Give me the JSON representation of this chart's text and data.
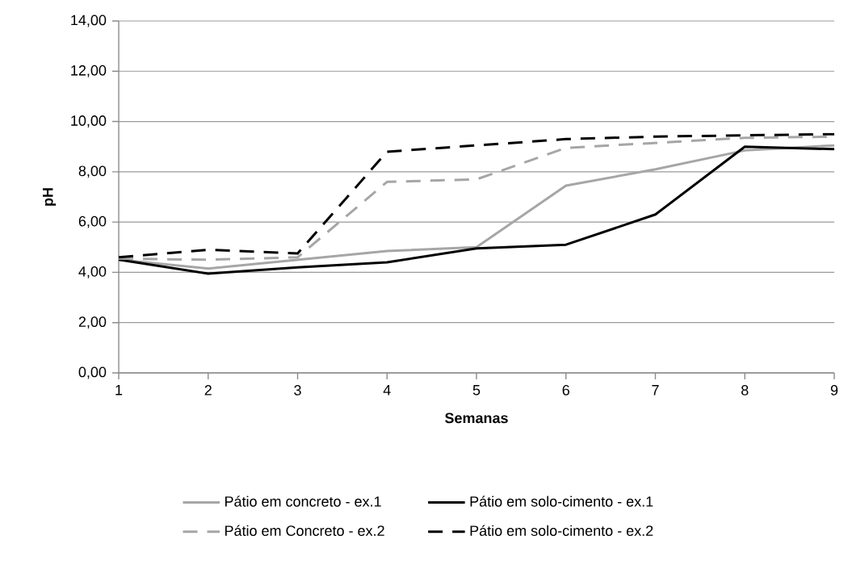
{
  "chart_data": {
    "type": "line",
    "xlabel": "Semanas",
    "ylabel": "pH",
    "x": [
      1,
      2,
      3,
      4,
      5,
      6,
      7,
      8,
      9
    ],
    "series": [
      {
        "name": "Pátio em concreto - ex.1",
        "color": "#a6a6a6",
        "line_style": "solid",
        "values": [
          4.5,
          4.15,
          4.5,
          4.85,
          5.0,
          7.45,
          8.1,
          8.85,
          9.05
        ]
      },
      {
        "name": "Pátio em solo-cimento - ex.1",
        "color": "#000000",
        "line_style": "solid",
        "values": [
          4.5,
          3.95,
          4.2,
          4.4,
          4.95,
          5.1,
          6.3,
          9.0,
          8.9
        ]
      },
      {
        "name": "Pátio em Concreto - ex.2",
        "color": "#a6a6a6",
        "line_style": "dashed",
        "values": [
          4.55,
          4.5,
          4.6,
          7.6,
          7.7,
          8.95,
          9.15,
          9.35,
          9.4
        ]
      },
      {
        "name": "Pátio em solo-cimento - ex.2",
        "color": "#000000",
        "line_style": "dashed",
        "values": [
          4.6,
          4.9,
          4.75,
          8.8,
          9.05,
          9.3,
          9.4,
          9.45,
          9.5
        ]
      }
    ],
    "xlim": [
      1,
      9
    ],
    "xticks": [
      1,
      2,
      3,
      4,
      5,
      6,
      7,
      8,
      9
    ],
    "ylim": [
      0,
      14
    ],
    "yticks": [
      {
        "value": 0,
        "label": "0,00"
      },
      {
        "value": 2,
        "label": "2,00"
      },
      {
        "value": 4,
        "label": "4,00"
      },
      {
        "value": 6,
        "label": "6,00"
      },
      {
        "value": 8,
        "label": "8,00"
      },
      {
        "value": 10,
        "label": "10,00"
      },
      {
        "value": 12,
        "label": "12,00"
      },
      {
        "value": 14,
        "label": "14,00"
      }
    ],
    "grid": "y",
    "legend": "bottom",
    "marker": "none"
  }
}
